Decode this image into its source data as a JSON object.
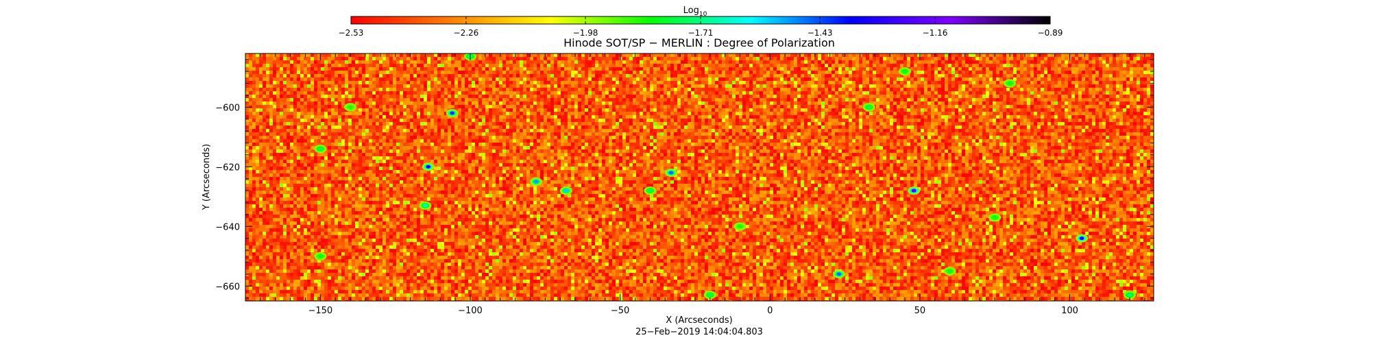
{
  "chart_data": {
    "type": "heatmap",
    "title": "Hinode SOT/SP − MERLIN : Degree of Polarization",
    "xlabel": "X (Arcseconds)",
    "ylabel": "Y (Arcseconds)",
    "date_label": "25−Feb−2019 14:04:04.803",
    "xlim": [
      -175,
      128
    ],
    "ylim": [
      -665,
      -582
    ],
    "x_ticks": [
      -150,
      -100,
      -50,
      0,
      50,
      100
    ],
    "x_tick_labels": [
      "−150",
      "−100",
      "−50",
      "0",
      "50",
      "100"
    ],
    "y_ticks": [
      -600,
      -620,
      -640,
      -660
    ],
    "y_tick_labels": [
      "−600",
      "−620",
      "−640",
      "−660"
    ],
    "colorbar": {
      "label_base": "Log",
      "label_sub": "10",
      "range": [
        -2.53,
        -0.89
      ],
      "ticks": [
        -2.53,
        -2.26,
        -1.98,
        -1.71,
        -1.43,
        -1.16,
        -0.89
      ],
      "tick_labels": [
        "−2.53",
        "−2.26",
        "−1.98",
        "−1.71",
        "−1.43",
        "−1.16",
        "−0.89"
      ],
      "colormap": [
        "#ff0000",
        "#ff7f00",
        "#ffff00",
        "#00ff00",
        "#00ffff",
        "#0000ff",
        "#8000ff",
        "#000000"
      ]
    },
    "background_value": -2.36,
    "features": [
      {
        "x": -106,
        "y": -602,
        "value": -1.4
      },
      {
        "x": -114,
        "y": -620,
        "value": -1.35
      },
      {
        "x": -78,
        "y": -625,
        "value": -1.5
      },
      {
        "x": -68,
        "y": -628,
        "value": -1.55
      },
      {
        "x": -33,
        "y": -622,
        "value": -1.45
      },
      {
        "x": -40,
        "y": -628,
        "value": -1.75
      },
      {
        "x": -115,
        "y": -633,
        "value": -1.65
      },
      {
        "x": 48,
        "y": -628,
        "value": -1.2
      },
      {
        "x": 104,
        "y": -644,
        "value": -1.3
      },
      {
        "x": 23,
        "y": -656,
        "value": -1.45
      },
      {
        "x": 33,
        "y": -600,
        "value": -1.75
      },
      {
        "x": -100,
        "y": -583,
        "value": -1.7
      },
      {
        "x": -20,
        "y": -663,
        "value": -1.75
      },
      {
        "x": 120,
        "y": -663,
        "value": -1.7
      },
      {
        "x": -150,
        "y": -614,
        "value": -1.75
      },
      {
        "x": 45,
        "y": -588,
        "value": -1.8
      },
      {
        "x": 80,
        "y": -592,
        "value": -1.8
      },
      {
        "x": -150,
        "y": -650,
        "value": -1.8
      },
      {
        "x": 75,
        "y": -637,
        "value": -1.8
      },
      {
        "x": -140,
        "y": -600,
        "value": -1.85
      },
      {
        "x": 60,
        "y": -655,
        "value": -1.8
      },
      {
        "x": -10,
        "y": -640,
        "value": -1.85
      }
    ]
  }
}
